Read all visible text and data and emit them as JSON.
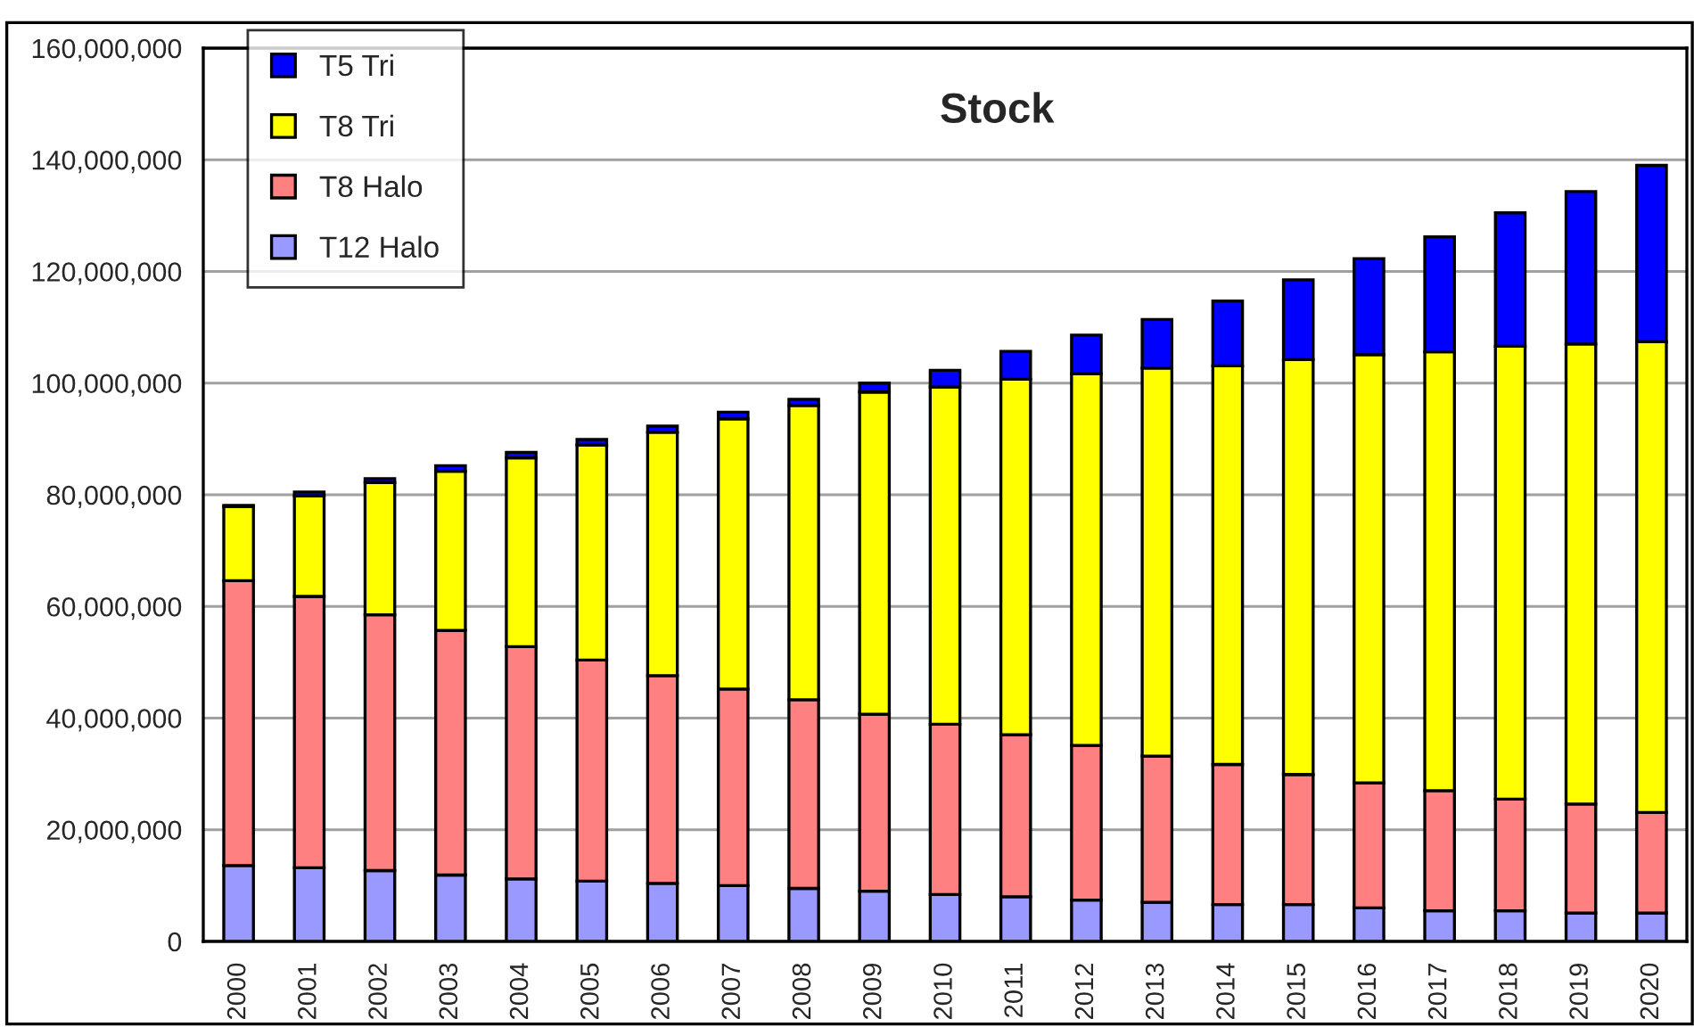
{
  "chart_data": {
    "type": "bar",
    "title": "Stock",
    "stacked": true,
    "categories": [
      "2000",
      "2001",
      "2002",
      "2003",
      "2004",
      "2005",
      "2006",
      "2007",
      "2008",
      "2009",
      "2010",
      "2011",
      "2012",
      "2013",
      "2014",
      "2015",
      "2016",
      "2017",
      "2018",
      "2019",
      "2020"
    ],
    "series": [
      {
        "name": "T12 Halo",
        "color": "#9999ff",
        "values": [
          13600000,
          13200000,
          12700000,
          11900000,
          11200000,
          10800000,
          10400000,
          10000000,
          9500000,
          9000000,
          8400000,
          8000000,
          7400000,
          7000000,
          6600000,
          6600000,
          6000000,
          5500000,
          5500000,
          5100000,
          5100000
        ]
      },
      {
        "name": "T8 Halo",
        "color": "#ff8080",
        "values": [
          51000000,
          48600000,
          45800000,
          43800000,
          41600000,
          39600000,
          37200000,
          35200000,
          33800000,
          31700000,
          30500000,
          29000000,
          27700000,
          26200000,
          25100000,
          23300000,
          22400000,
          21500000,
          20000000,
          19500000,
          18000000
        ]
      },
      {
        "name": "T8 Tri",
        "color": "#ffff00",
        "values": [
          13300000,
          18000000,
          23700000,
          28500000,
          33800000,
          38500000,
          43600000,
          48400000,
          52700000,
          57700000,
          60400000,
          63700000,
          66600000,
          69500000,
          71400000,
          74300000,
          76700000,
          78600000,
          81100000,
          82400000,
          84300000
        ]
      },
      {
        "name": "T5 Tri",
        "color": "#0000ff",
        "values": [
          200000,
          700000,
          700000,
          1000000,
          1000000,
          1000000,
          1100000,
          1200000,
          1100000,
          1600000,
          3000000,
          5000000,
          6900000,
          8700000,
          11600000,
          14300000,
          17200000,
          20600000,
          23900000,
          27300000,
          31600000
        ]
      }
    ],
    "ylim": [
      0,
      160000000
    ],
    "yticks": [
      0,
      {
        "value": 20000000,
        "label": "20,000,000"
      },
      {
        "value": 40000000,
        "label": "40,000,000"
      },
      {
        "value": 60000000,
        "label": "60,000,000"
      },
      {
        "value": 80000000,
        "label": "80,000,000"
      },
      {
        "value": 100000000,
        "label": "100,000,000"
      },
      {
        "value": 120000000,
        "label": "120,000,000"
      },
      {
        "value": 140000000,
        "label": "140,000,000"
      },
      {
        "value": 160000000,
        "label": "160,000,000"
      }
    ],
    "grid": "y",
    "legend": "top left"
  }
}
